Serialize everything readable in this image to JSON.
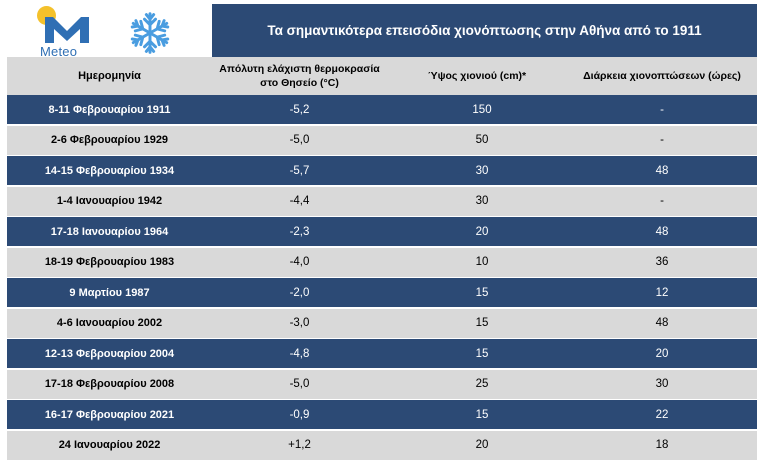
{
  "brand": {
    "name": "Meteo"
  },
  "title": "Τα σημαντικότερα επεισόδια χιονόπτωσης στην Αθήνα από το 1911",
  "icons": {
    "logo": "meteo-logo-icon",
    "snowflake": "snowflake-icon"
  },
  "colors": {
    "header_blue": "#2c4a75",
    "row_gray": "#d9d9d9",
    "logo_blue": "#2f6fb4",
    "sun_yellow": "#f4c12b"
  },
  "table": {
    "headers": {
      "date": "Ημερομηνία",
      "temp": "Απόλυτη ελάχιστη θερμοκρασία στο Θησείο (°C)",
      "snow": "Ύψος χιονιού (cm)*",
      "duration": "Διάρκεια χιονοπτώσεων (ώρες)"
    },
    "rows": [
      {
        "date": "8-11 Φεβρουαρίου 1911",
        "temp": "-5,2",
        "snow": "150",
        "duration": "-"
      },
      {
        "date": "2-6 Φεβρουαρίου 1929",
        "temp": "-5,0",
        "snow": "50",
        "duration": "-"
      },
      {
        "date": "14-15 Φεβρουαρίου 1934",
        "temp": "-5,7",
        "snow": "30",
        "duration": "48"
      },
      {
        "date": "1-4 Ιανουαρίου 1942",
        "temp": "-4,4",
        "snow": "30",
        "duration": "-"
      },
      {
        "date": "17-18 Ιανουαρίου 1964",
        "temp": "-2,3",
        "snow": "20",
        "duration": "48"
      },
      {
        "date": "18-19 Φεβρουαρίου 1983",
        "temp": "-4,0",
        "snow": "10",
        "duration": "36"
      },
      {
        "date": "9 Μαρτίου 1987",
        "temp": "-2,0",
        "snow": "15",
        "duration": "12"
      },
      {
        "date": "4-6 Ιανουαρίου 2002",
        "temp": "-3,0",
        "snow": "15",
        "duration": "48"
      },
      {
        "date": "12-13 Φεβρουαρίου 2004",
        "temp": "-4,8",
        "snow": "15",
        "duration": "20"
      },
      {
        "date": "17-18 Φεβρουαρίου 2008",
        "temp": "-5,0",
        "snow": "25",
        "duration": "30"
      },
      {
        "date": "16-17 Φεβρουαρίου 2021",
        "temp": "-0,9",
        "snow": "15",
        "duration": "22"
      },
      {
        "date": "24 Ιανουαρίου 2022",
        "temp": "+1,2",
        "snow": "20",
        "duration": "18"
      }
    ]
  }
}
